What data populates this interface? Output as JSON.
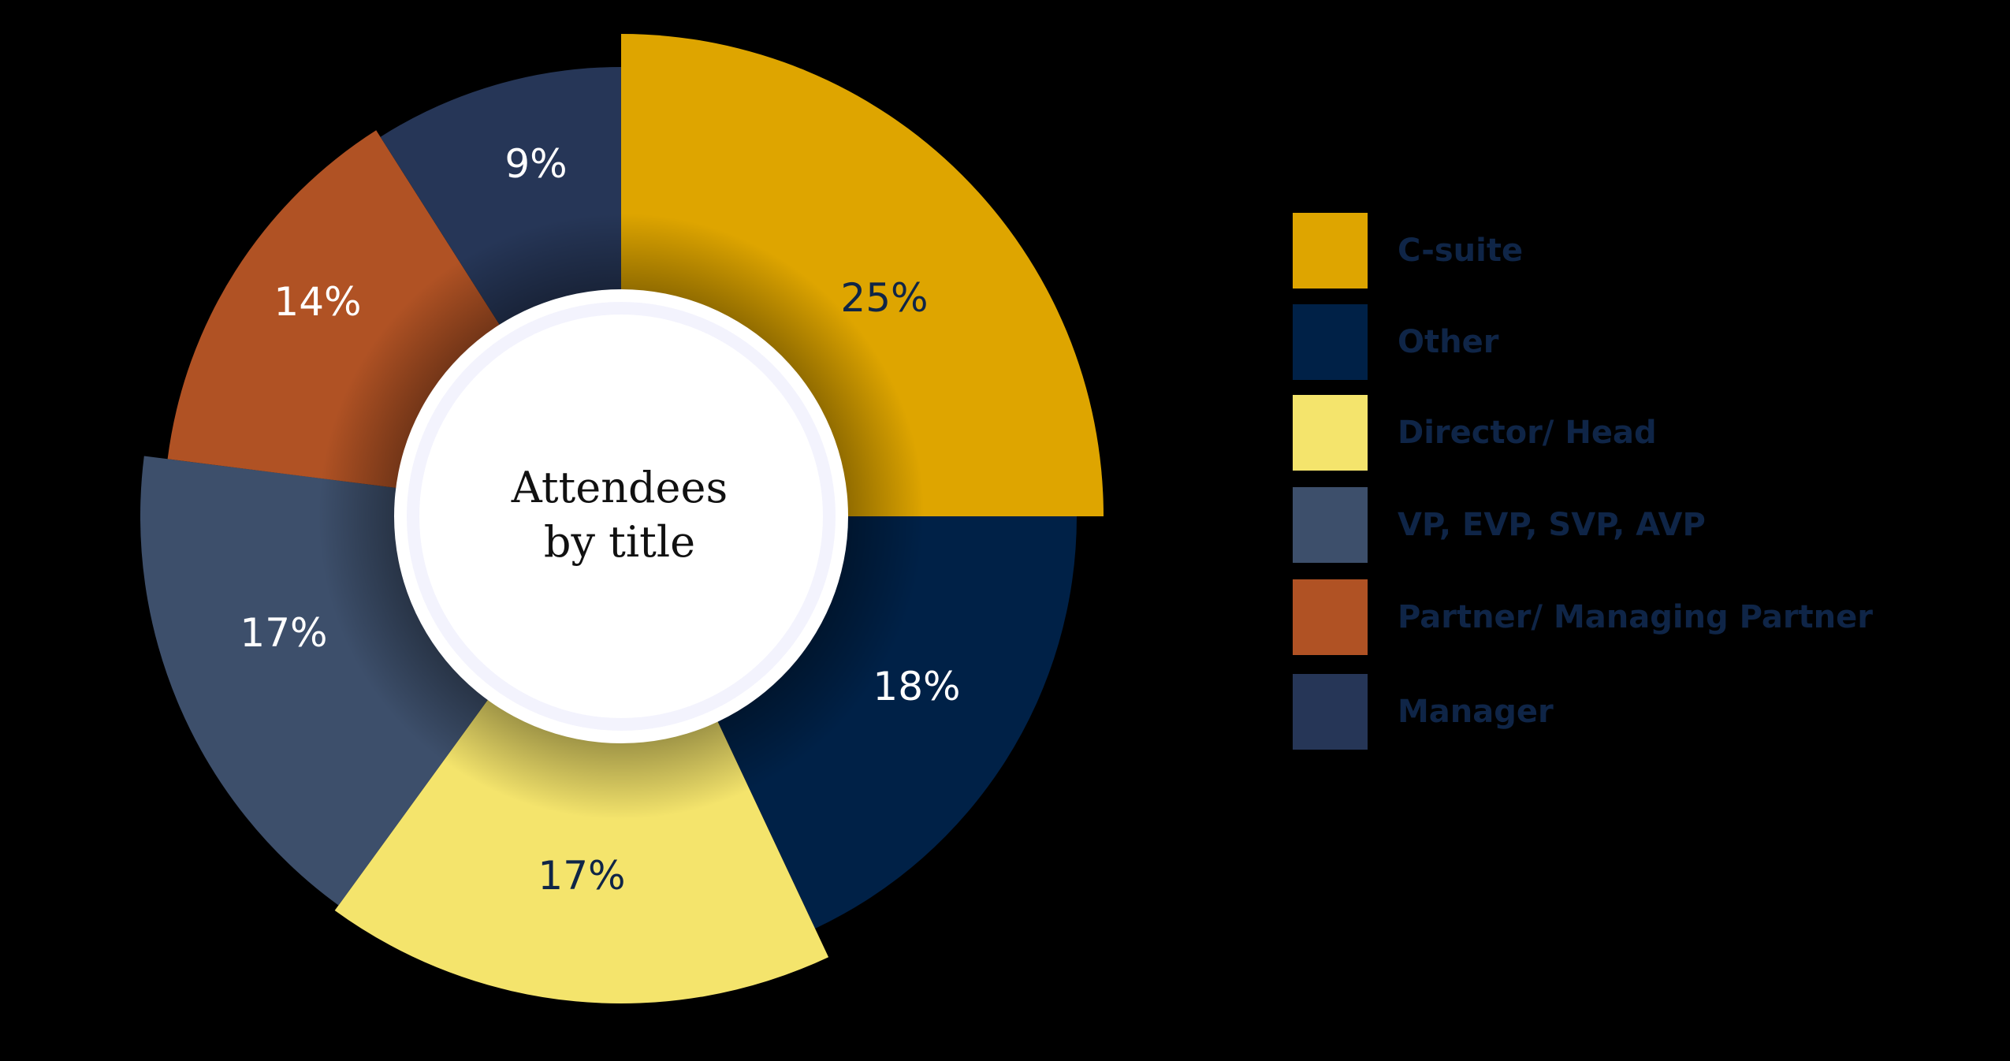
{
  "chart_data": {
    "type": "pie",
    "subtype": "donut",
    "title": "Attendees by title",
    "title_lines": [
      "Attendees",
      "by title"
    ],
    "categories": [
      "C-suite",
      "Other",
      "Director/ Head",
      "VP, EVP, SVP, AVP",
      "Partner/ Managing Partner",
      "Manager"
    ],
    "values": [
      25,
      18,
      17,
      17,
      14,
      9
    ],
    "value_labels": [
      "25%",
      "18%",
      "17%",
      "17%",
      "14%",
      "9%"
    ],
    "colors": [
      "#dea500",
      "#002147",
      "#f4e46c",
      "#3d4f6b",
      "#b05224",
      "#263657"
    ],
    "label_colors": [
      "#0f2547",
      "#ffffff",
      "#0f2547",
      "#ffffff",
      "#ffffff",
      "#ffffff"
    ],
    "legend_position": "right",
    "unit": "%"
  },
  "legend": {
    "items": [
      {
        "label": "C-suite",
        "color": "#dea500"
      },
      {
        "label": "Other",
        "color": "#002147"
      },
      {
        "label": "Director/ Head",
        "color": "#f4e46c"
      },
      {
        "label": "VP, EVP, SVP, AVP",
        "color": "#3d4f6b"
      },
      {
        "label": "Partner/ Managing Partner",
        "color": "#b05224"
      },
      {
        "label": "Manager",
        "color": "#263657"
      }
    ]
  },
  "center": {
    "line1": "Attendees",
    "line2": "by title"
  },
  "colors": {
    "background": "#000000",
    "legend_text": "#0f2547",
    "center_fill": "#ffffff",
    "center_ring": "#f3f3fd"
  }
}
